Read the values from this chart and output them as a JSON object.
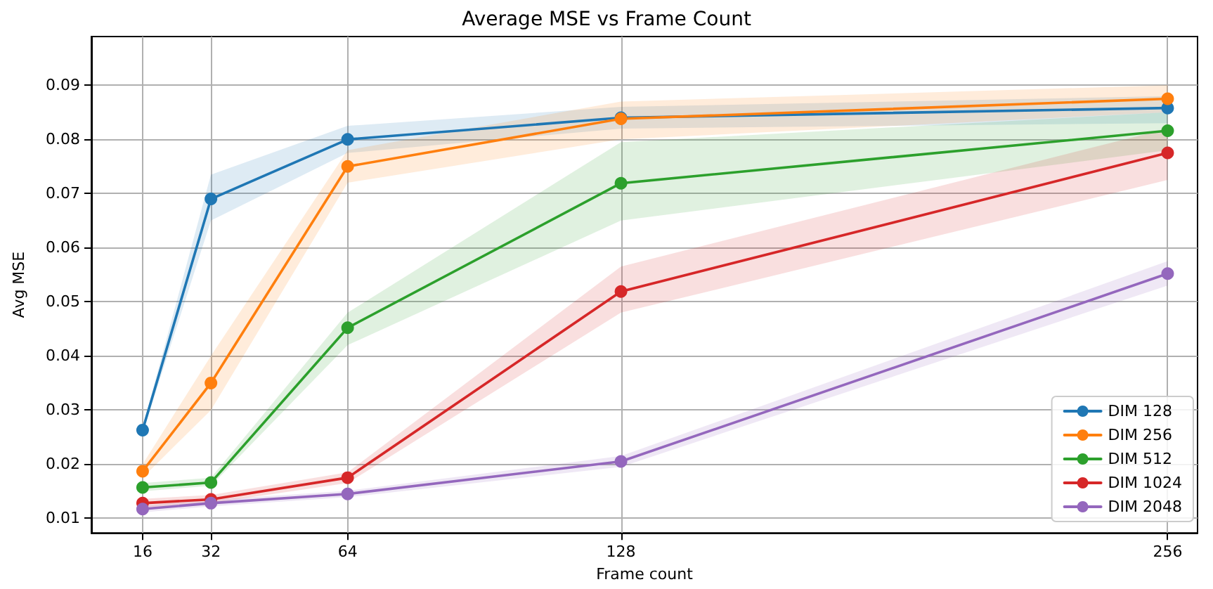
{
  "chart_data": {
    "type": "line",
    "title": "Average MSE vs Frame Count",
    "xlabel": "Frame count",
    "ylabel": "Avg MSE",
    "x": [
      16,
      32,
      64,
      128,
      256
    ],
    "xlim": [
      4,
      263
    ],
    "xticks": [
      16,
      32,
      64,
      128,
      256
    ],
    "ylim": [
      0.0073,
      0.099
    ],
    "yticks": [
      0.01,
      0.02,
      0.03,
      0.04,
      0.05,
      0.06,
      0.07,
      0.08,
      0.09
    ],
    "grid": true,
    "legend": "bottom right",
    "marker": "circle",
    "line_style": "solid",
    "series": [
      {
        "name": "DIM 128",
        "color": "#1f77b4",
        "values": [
          0.0263,
          0.069,
          0.08,
          0.084,
          0.0858
        ],
        "lower": [
          0.0258,
          0.065,
          0.0775,
          0.082,
          0.083
        ],
        "upper": [
          0.0268,
          0.0735,
          0.0825,
          0.086,
          0.088
        ]
      },
      {
        "name": "DIM 256",
        "color": "#ff7f0e",
        "values": [
          0.0187,
          0.035,
          0.075,
          0.0838,
          0.0875
        ],
        "lower": [
          0.0175,
          0.03,
          0.072,
          0.08,
          0.085
        ],
        "upper": [
          0.02,
          0.04,
          0.078,
          0.087,
          0.09
        ]
      },
      {
        "name": "DIM 512",
        "color": "#2ca02c",
        "values": [
          0.0157,
          0.0166,
          0.0452,
          0.0719,
          0.0816
        ],
        "lower": [
          0.015,
          0.016,
          0.042,
          0.065,
          0.078
        ],
        "upper": [
          0.0165,
          0.0175,
          0.048,
          0.0795,
          0.085
        ]
      },
      {
        "name": "DIM 1024",
        "color": "#d62728",
        "values": [
          0.0128,
          0.0135,
          0.0175,
          0.0519,
          0.0775
        ],
        "lower": [
          0.012,
          0.0128,
          0.0165,
          0.048,
          0.0725
        ],
        "upper": [
          0.0136,
          0.0143,
          0.0185,
          0.0565,
          0.082
        ]
      },
      {
        "name": "DIM 2048",
        "color": "#9467bd",
        "values": [
          0.0117,
          0.0128,
          0.0145,
          0.0205,
          0.0552
        ],
        "lower": [
          0.0111,
          0.0122,
          0.0139,
          0.0195,
          0.053
        ],
        "upper": [
          0.0123,
          0.0134,
          0.0151,
          0.0215,
          0.0575
        ]
      }
    ]
  }
}
